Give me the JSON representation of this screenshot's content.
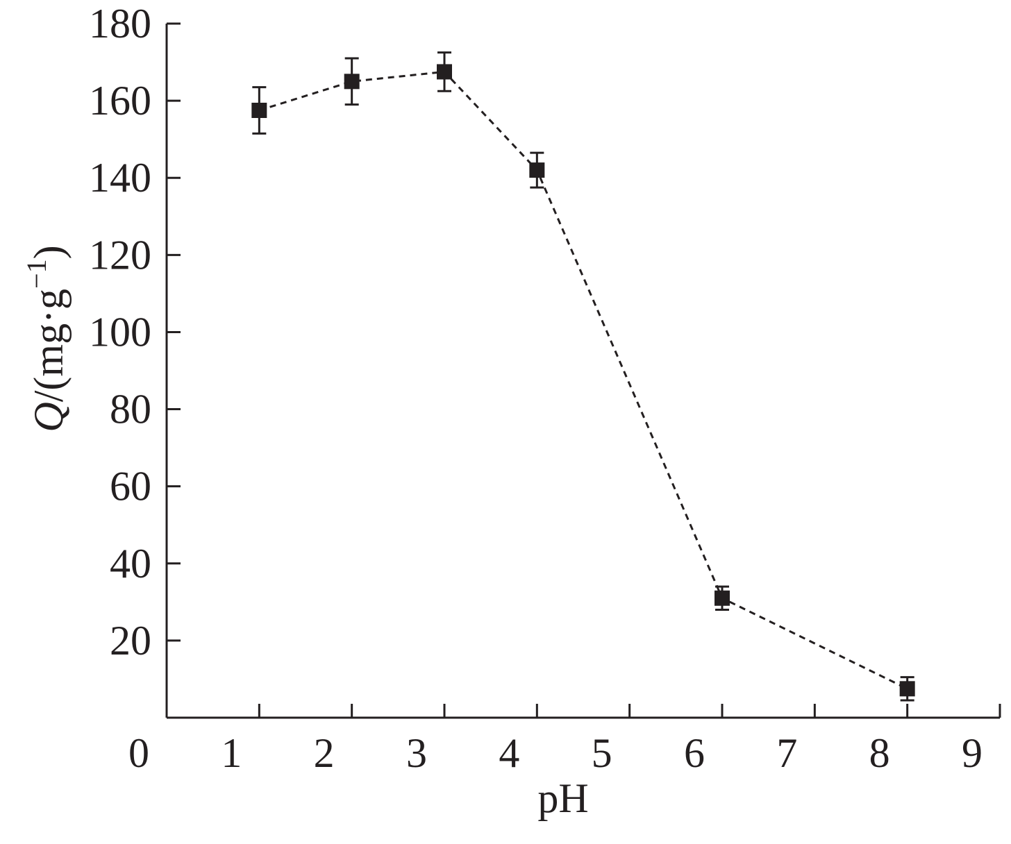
{
  "chart_data": {
    "type": "scatter",
    "xlabel": "pH",
    "ylabel_italic": "Q",
    "ylabel_rest": "/(mg·g",
    "ylabel_sup": "−1",
    "ylabel_close": ")",
    "xlim": [
      0,
      9
    ],
    "ylim": [
      0,
      180
    ],
    "x_ticks": [
      0,
      1,
      2,
      3,
      4,
      5,
      6,
      7,
      8,
      9
    ],
    "y_ticks": [
      20,
      40,
      60,
      80,
      100,
      120,
      140,
      160,
      180
    ],
    "grid": false,
    "line_style": "dashed",
    "marker": "square",
    "series": [
      {
        "x": [
          1,
          2,
          3,
          4,
          6,
          8
        ],
        "y": [
          157.5,
          165,
          167.5,
          142,
          31,
          7.5
        ],
        "error": [
          6,
          6,
          5,
          4.5,
          3,
          3
        ]
      }
    ],
    "colors": {
      "ink": "#231f20",
      "background": "#ffffff"
    }
  }
}
